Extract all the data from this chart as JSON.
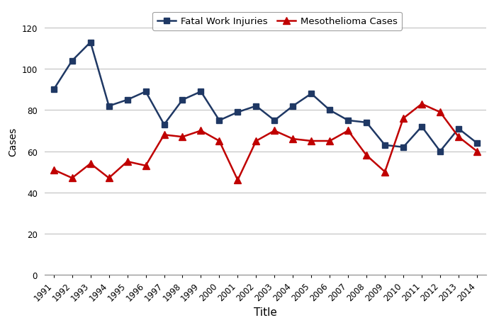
{
  "years": [
    "1991",
    "1992",
    "1993",
    "1994",
    "1995",
    "1996",
    "1997",
    "1998",
    "1999",
    "2000",
    "2001",
    "2002",
    "2003",
    "2004",
    "2005",
    "2006",
    "2007",
    "2008",
    "2009",
    "2010",
    "2011",
    "2012",
    "2013",
    "2014"
  ],
  "fatal_work_injuries": [
    90,
    104,
    113,
    82,
    85,
    89,
    73,
    85,
    89,
    75,
    79,
    82,
    75,
    82,
    88,
    80,
    75,
    74,
    63,
    62,
    72,
    60,
    71,
    64
  ],
  "mesothelioma_cases": [
    51,
    47,
    54,
    47,
    55,
    53,
    68,
    67,
    70,
    65,
    46,
    65,
    70,
    66,
    65,
    65,
    70,
    58,
    50,
    76,
    83,
    79,
    67,
    60
  ],
  "fatal_color": "#1F3864",
  "meso_color": "#C00000",
  "ylabel": "Cases",
  "xlabel": "Title",
  "ylim": [
    0,
    130
  ],
  "yticks": [
    0,
    20,
    40,
    60,
    80,
    100,
    120
  ],
  "legend_fatal": "Fatal Work Injuries",
  "legend_meso": "Mesothelioma Cases",
  "bg_color": "#FFFFFF",
  "grid_color": "#C0C0C0"
}
